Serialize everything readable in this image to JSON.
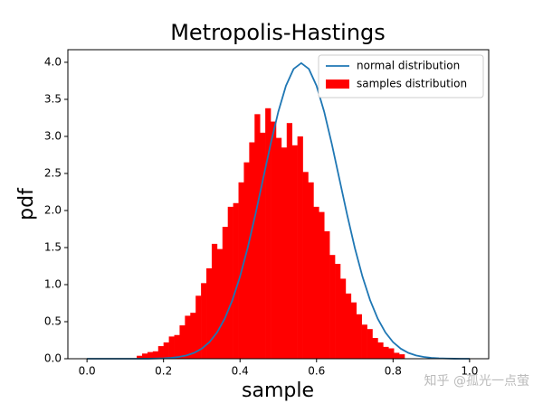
{
  "chart_data": {
    "type": "histogram",
    "title": "Metropolis-Hastings",
    "x_label": "sample",
    "y_label": "pdf",
    "xlim": [
      -0.05,
      1.05
    ],
    "ylim": [
      0,
      4.17
    ],
    "xticks": [
      {
        "value": 0,
        "label": "0.0"
      },
      0.2,
      0.4,
      0.6,
      0.8,
      {
        "value": 1,
        "label": "1.0"
      }
    ],
    "yticks": [
      {
        "value": 0,
        "label": "0.0"
      },
      0.5,
      {
        "value": 1,
        "label": "1.0"
      },
      1.5,
      {
        "value": 2,
        "label": "2.0"
      },
      2.5,
      {
        "value": 3,
        "label": "3.0"
      },
      3.5,
      {
        "value": 4,
        "label": "4.0"
      }
    ],
    "grid": false,
    "legend": "upper right",
    "series": [
      {
        "name": "samples distribution",
        "type": "histogram",
        "color": "#ff0000",
        "bins": [
          0.13,
          0.144,
          0.158,
          0.172,
          0.186,
          0.2,
          0.214,
          0.228,
          0.242,
          0.256,
          0.27,
          0.284,
          0.298,
          0.312,
          0.326,
          0.34,
          0.354,
          0.368,
          0.382,
          0.396,
          0.41,
          0.424,
          0.438,
          0.452,
          0.466,
          0.48,
          0.494,
          0.508,
          0.522,
          0.536,
          0.55,
          0.564,
          0.578,
          0.592,
          0.606,
          0.62,
          0.634,
          0.648,
          0.662,
          0.676,
          0.69,
          0.704,
          0.718,
          0.732,
          0.746,
          0.76,
          0.774,
          0.788,
          0.802,
          0.816,
          0.83
        ],
        "values": [
          0.04,
          0.07,
          0.09,
          0.1,
          0.17,
          0.22,
          0.3,
          0.32,
          0.45,
          0.58,
          0.62,
          0.85,
          1.02,
          1.22,
          1.55,
          1.48,
          1.78,
          2.05,
          2.1,
          2.38,
          2.65,
          2.92,
          3.3,
          3.05,
          3.38,
          3.2,
          2.98,
          2.85,
          3.18,
          2.88,
          3.0,
          2.52,
          2.38,
          2.05,
          1.98,
          1.72,
          1.4,
          1.28,
          1.08,
          0.88,
          0.76,
          0.6,
          0.46,
          0.4,
          0.28,
          0.22,
          0.16,
          0.14,
          0.08,
          0.06
        ]
      },
      {
        "name": "normal distribution",
        "type": "line",
        "color": "#1f77b4",
        "x": [
          0,
          0.02,
          0.04,
          0.06,
          0.08,
          0.1,
          0.12,
          0.14,
          0.16,
          0.18,
          0.2,
          0.22,
          0.24,
          0.26,
          0.28,
          0.3,
          0.32,
          0.34,
          0.36,
          0.38,
          0.4,
          0.42,
          0.44,
          0.46,
          0.48,
          0.5,
          0.52,
          0.54,
          0.56,
          0.58,
          0.6,
          0.62,
          0.64,
          0.66,
          0.68,
          0.7,
          0.72,
          0.74,
          0.76,
          0.78,
          0.8,
          0.82,
          0.84,
          0.86,
          0.88,
          0.9,
          0.92,
          0.94,
          0.96,
          0.98,
          1
        ],
        "values": [
          0,
          0,
          0,
          0,
          0,
          0,
          0,
          0,
          0.001,
          0.003,
          0.006,
          0.012,
          0.024,
          0.044,
          0.079,
          0.136,
          0.224,
          0.355,
          0.54,
          0.79,
          1.109,
          1.497,
          1.942,
          2.42,
          2.897,
          3.332,
          3.683,
          3.91,
          3.989,
          3.91,
          3.683,
          3.332,
          2.897,
          2.42,
          1.942,
          1.497,
          1.109,
          0.79,
          0.54,
          0.355,
          0.224,
          0.136,
          0.079,
          0.044,
          0.024,
          0.012,
          0.006,
          0.003,
          0.001,
          0,
          0
        ]
      }
    ],
    "watermark": "知乎 @孤光一点萤"
  }
}
